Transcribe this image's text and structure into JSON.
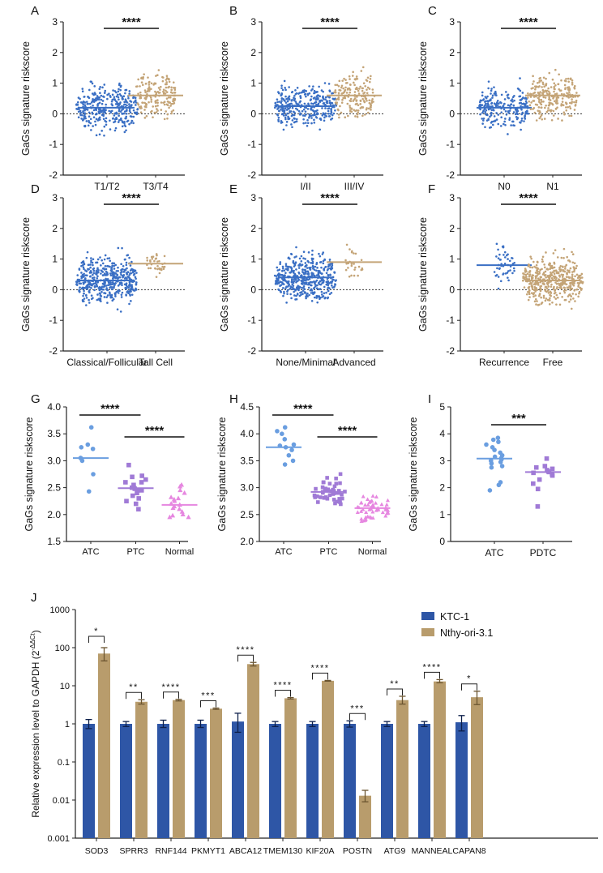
{
  "chart_data": [
    {
      "panel": "A",
      "type": "scatter",
      "ylabel": "GaGs signature riskscore",
      "ylim": [
        -2,
        3
      ],
      "yticks": [
        "-2",
        "-1",
        "0",
        "1",
        "2",
        "3"
      ],
      "zero_line": "dotted",
      "groups": [
        {
          "label": "T1/T2",
          "color": "#3a6fc4",
          "marker": "circle",
          "median": 0.2,
          "min": -1.2,
          "max": 1.75,
          "n": 330
        },
        {
          "label": "T3/T4",
          "color": "#c4a477",
          "marker": "circle",
          "median": 0.6,
          "min": -1.0,
          "max": 2.0,
          "n": 170
        }
      ],
      "significance": [
        {
          "from": 0,
          "to": 1,
          "label": "****"
        }
      ]
    },
    {
      "panel": "B",
      "type": "scatter",
      "ylabel": "GaGs signature riskscore",
      "ylim": [
        -2,
        3
      ],
      "yticks": [
        "-2",
        "-1",
        "0",
        "1",
        "2",
        "3"
      ],
      "zero_line": "dotted",
      "groups": [
        {
          "label": "I/II",
          "color": "#3a6fc4",
          "marker": "circle",
          "median": 0.25,
          "min": -1.2,
          "max": 1.6,
          "n": 330
        },
        {
          "label": "III/IV",
          "color": "#c4a477",
          "marker": "circle",
          "median": 0.6,
          "min": -1.0,
          "max": 2.0,
          "n": 170
        }
      ],
      "significance": [
        {
          "from": 0,
          "to": 1,
          "label": "****"
        }
      ]
    },
    {
      "panel": "C",
      "type": "scatter",
      "ylabel": "GaGs signature riskscore",
      "ylim": [
        -2,
        3
      ],
      "yticks": [
        "-2",
        "-1",
        "0",
        "1",
        "2",
        "3"
      ],
      "zero_line": "dotted",
      "groups": [
        {
          "label": "N0",
          "color": "#3a6fc4",
          "marker": "circle",
          "median": 0.2,
          "min": -1.2,
          "max": 1.6,
          "n": 230
        },
        {
          "label": "N1",
          "color": "#c4a477",
          "marker": "circle",
          "median": 0.6,
          "min": -0.9,
          "max": 2.05,
          "n": 230
        }
      ],
      "significance": [
        {
          "from": 0,
          "to": 1,
          "label": "****"
        }
      ]
    },
    {
      "panel": "D",
      "type": "scatter",
      "ylabel": "GaGs signature riskscore",
      "ylim": [
        -2,
        3
      ],
      "yticks": [
        "-2",
        "-1",
        "0",
        "1",
        "2",
        "3"
      ],
      "zero_line": "dotted",
      "groups": [
        {
          "label": "Classical/Follicular",
          "color": "#3a6fc4",
          "marker": "circle",
          "median": 0.3,
          "min": -1.2,
          "max": 2.0,
          "n": 460
        },
        {
          "label": "Tall Cell",
          "color": "#c4a477",
          "marker": "circle",
          "median": 0.85,
          "min": -0.1,
          "max": 1.65,
          "n": 36
        }
      ],
      "significance": [
        {
          "from": 0,
          "to": 1,
          "label": "****"
        }
      ]
    },
    {
      "panel": "E",
      "type": "scatter",
      "ylabel": "GaGs signature riskscore",
      "ylim": [
        -2,
        3
      ],
      "yticks": [
        "-2",
        "-1",
        "0",
        "1",
        "2",
        "3"
      ],
      "zero_line": "dotted",
      "groups": [
        {
          "label": "None/Minimal",
          "color": "#3a6fc4",
          "marker": "circle",
          "median": 0.4,
          "min": -1.2,
          "max": 2.0,
          "n": 460
        },
        {
          "label": "Advanced",
          "color": "#c4a477",
          "marker": "circle",
          "median": 0.9,
          "min": -0.3,
          "max": 1.65,
          "n": 26
        }
      ],
      "significance": [
        {
          "from": 0,
          "to": 1,
          "label": "****"
        }
      ]
    },
    {
      "panel": "F",
      "type": "scatter",
      "ylabel": "GaGs signature riskscore",
      "ylim": [
        -2,
        3
      ],
      "yticks": [
        "-2",
        "-1",
        "0",
        "1",
        "2",
        "3"
      ],
      "zero_line": "dotted",
      "groups": [
        {
          "label": "Recurrence",
          "color": "#3a6fc4",
          "marker": "circle",
          "median": 0.8,
          "min": -0.5,
          "max": 2.0,
          "n": 50
        },
        {
          "label": "Free",
          "color": "#c4a477",
          "marker": "circle",
          "median": 0.3,
          "min": -1.2,
          "max": 1.75,
          "n": 440
        }
      ],
      "significance": [
        {
          "from": 0,
          "to": 1,
          "label": "****"
        }
      ]
    },
    {
      "panel": "G",
      "type": "scatter",
      "ylabel": "GaGs signature riskscore",
      "ylim": [
        1.5,
        4.0
      ],
      "yticks": [
        "1.5",
        "2.0",
        "2.5",
        "3.0",
        "3.5",
        "4.0"
      ],
      "groups": [
        {
          "label": "ATC",
          "color": "#6a9ee0",
          "marker": "circle",
          "median": 3.05,
          "values": [
            3.62,
            3.25,
            3.3,
            3.22,
            3.05,
            3.05,
            3.0,
            2.75,
            2.43
          ]
        },
        {
          "label": "PTC",
          "color": "#a07ad6",
          "marker": "square",
          "median": 2.49,
          "values": [
            2.92,
            2.72,
            2.7,
            2.65,
            2.6,
            2.6,
            2.55,
            2.5,
            2.5,
            2.48,
            2.45,
            2.45,
            2.4,
            2.35,
            2.3,
            2.25,
            2.2,
            2.1
          ]
        },
        {
          "label": "Normal",
          "color": "#e687e0",
          "marker": "triangle",
          "median": 2.18,
          "values": [
            2.55,
            2.52,
            2.45,
            2.4,
            2.32,
            2.3,
            2.28,
            2.25,
            2.2,
            2.18,
            2.15,
            2.12,
            2.1,
            2.05,
            2.0,
            1.98,
            1.95,
            1.95
          ]
        }
      ],
      "significance": [
        {
          "from": 0,
          "to": 1,
          "label": "****"
        },
        {
          "from": 1,
          "to": 2,
          "label": "****"
        }
      ]
    },
    {
      "panel": "H",
      "type": "scatter",
      "ylabel": "GaGs signature riskscore",
      "ylim": [
        2.0,
        4.5
      ],
      "yticks": [
        "2.0",
        "2.5",
        "3.0",
        "3.5",
        "4.0",
        "4.5"
      ],
      "groups": [
        {
          "label": "ATC",
          "color": "#6a9ee0",
          "marker": "circle",
          "median": 3.75,
          "values": [
            4.12,
            4.05,
            4.0,
            3.9,
            3.8,
            3.78,
            3.75,
            3.7,
            3.6,
            3.5,
            3.43
          ]
        },
        {
          "label": "PTC",
          "color": "#a07ad6",
          "marker": "square",
          "median": 2.92,
          "min": 2.38,
          "max": 3.6,
          "n": 46
        },
        {
          "label": "Normal",
          "color": "#e687e0",
          "marker": "triangle",
          "median": 2.62,
          "min": 2.33,
          "max": 3.48,
          "n": 50
        }
      ],
      "significance": [
        {
          "from": 0,
          "to": 1,
          "label": "****"
        },
        {
          "from": 1,
          "to": 2,
          "label": "****"
        }
      ]
    },
    {
      "panel": "I",
      "type": "scatter",
      "ylabel": "GaGs signature riskscore",
      "ylim": [
        0,
        5
      ],
      "yticks": [
        "0",
        "1",
        "2",
        "3",
        "4",
        "5"
      ],
      "groups": [
        {
          "label": "ATC",
          "color": "#6a9ee0",
          "marker": "circle",
          "median": 3.08,
          "values": [
            3.85,
            3.78,
            3.7,
            3.6,
            3.5,
            3.4,
            3.3,
            3.2,
            3.15,
            3.1,
            3.05,
            3.0,
            2.95,
            2.9,
            2.8,
            2.75,
            2.2,
            2.1,
            1.9
          ]
        },
        {
          "label": "PDTC",
          "color": "#a07ad6",
          "marker": "square",
          "median": 2.58,
          "values": [
            3.08,
            2.8,
            2.75,
            2.7,
            2.65,
            2.6,
            2.58,
            2.55,
            2.5,
            2.45,
            2.3,
            2.15,
            1.95,
            1.3
          ]
        }
      ],
      "significance": [
        {
          "from": 0,
          "to": 1,
          "label": "***"
        }
      ]
    },
    {
      "panel": "J",
      "type": "bar",
      "yscale": "log",
      "ylim": [
        0.001,
        1000
      ],
      "ylabel": "Relative expression level to GAPDH (2",
      "ylabel_sup": "-ΔΔCt",
      "ylabel_end": ")",
      "yticks": [
        "0.001",
        "0.01",
        "0.1",
        "1",
        "10",
        "100",
        "1000"
      ],
      "legend_position": "top-right",
      "categories": [
        "SOD3",
        "SPRR3",
        "RNF144",
        "PKMYT1",
        "ABCA12",
        "TMEM130",
        "KIF20A",
        "POSTN",
        "ATG9",
        "MANNEAL",
        "CAPAN8"
      ],
      "series": [
        {
          "name": "KTC-1",
          "color": "#2e56a6",
          "values": [
            1,
            1,
            1,
            1,
            1.15,
            1,
            1,
            1,
            1,
            1,
            1.1
          ],
          "err_low": [
            0.75,
            0.85,
            0.8,
            0.8,
            0.6,
            0.85,
            0.85,
            0.82,
            0.85,
            0.85,
            0.65
          ],
          "err_high": [
            1.3,
            1.15,
            1.25,
            1.25,
            1.9,
            1.15,
            1.15,
            1.2,
            1.15,
            1.15,
            1.65
          ]
        },
        {
          "name": "Nthy-ori-3.1",
          "color": "#b89c6c",
          "values": [
            70,
            3.8,
            4.2,
            2.5,
            37,
            4.7,
            13.5,
            0.013,
            4.2,
            13,
            5
          ],
          "err_low": [
            45,
            3.3,
            4.0,
            2.4,
            33,
            4.5,
            13.2,
            0.009,
            3.3,
            12,
            3.2
          ],
          "err_high": [
            100,
            4.3,
            4.4,
            2.6,
            41,
            4.9,
            13.8,
            0.018,
            5.3,
            14.5,
            7.2
          ]
        }
      ],
      "significance": [
        "*",
        "**",
        "****",
        "***",
        "****",
        "****",
        "****",
        "***",
        "**",
        "****",
        "*"
      ]
    }
  ]
}
